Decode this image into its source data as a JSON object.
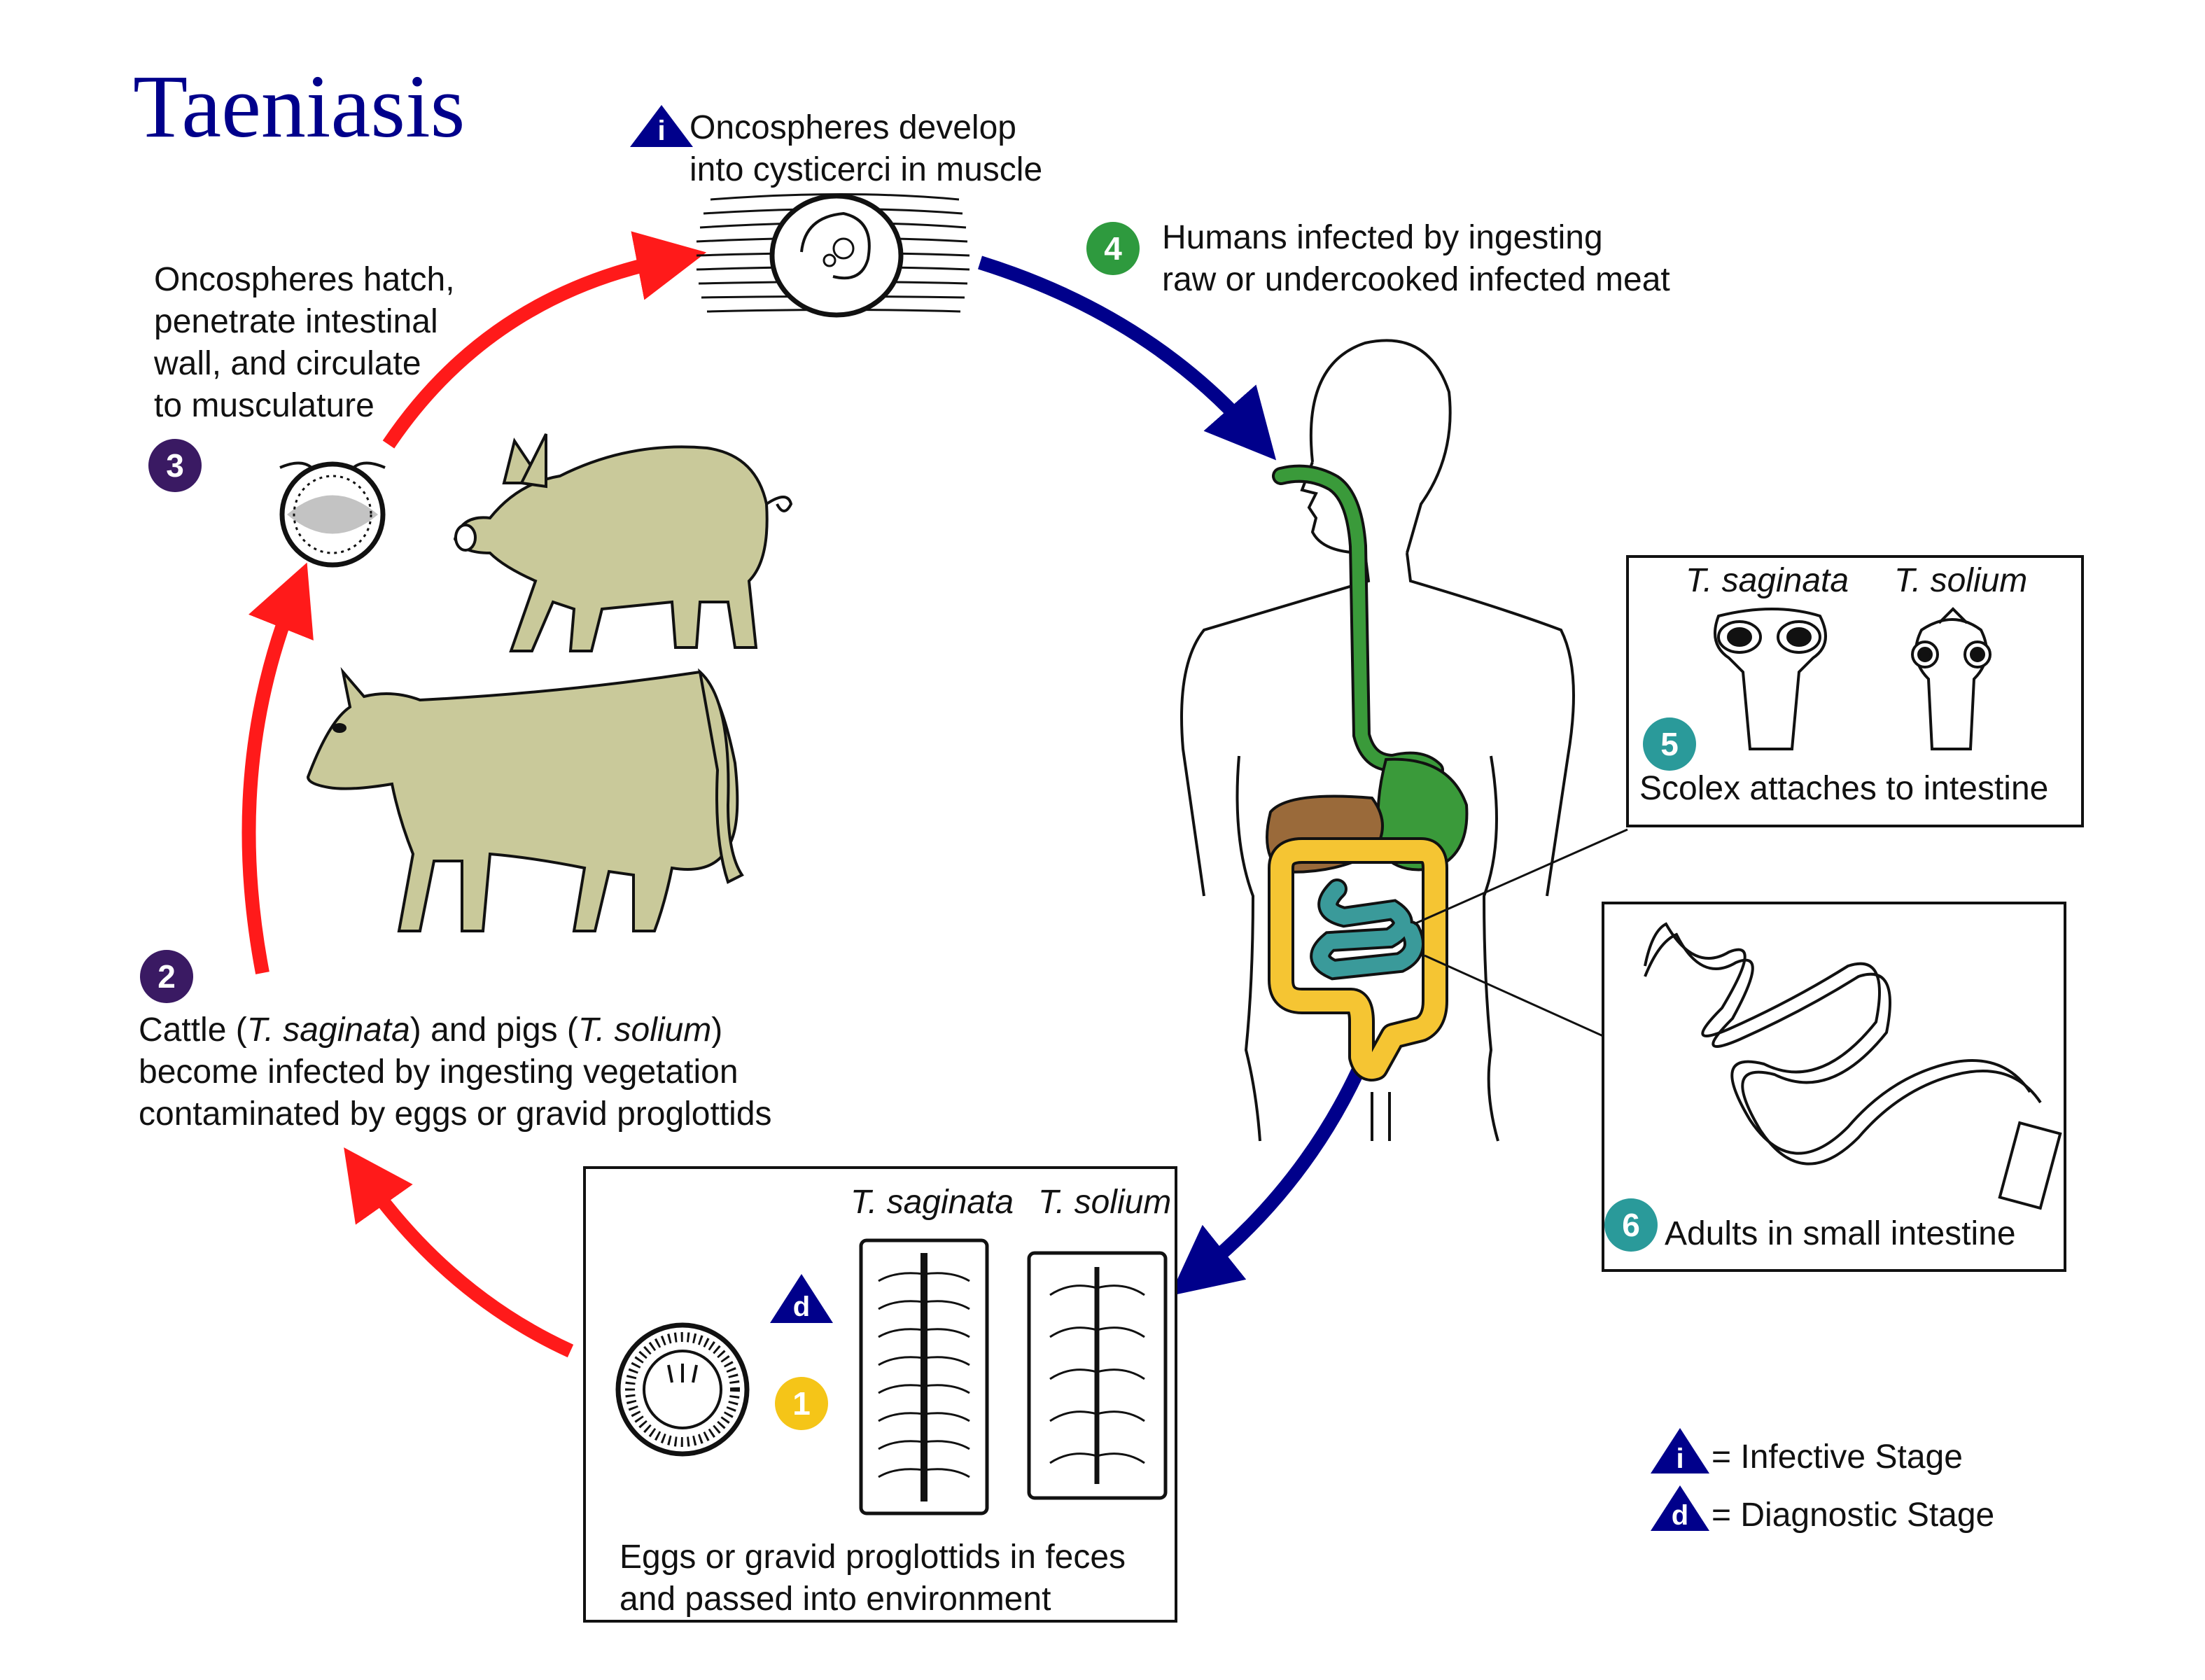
{
  "title": "Taeniasis",
  "steps": [
    {
      "number": "1",
      "color": "#f5c518",
      "lines": [
        "Eggs or gravid proglottids in feces",
        "and passed into environment"
      ]
    },
    {
      "number": "2",
      "color": "#3a1a63",
      "lines": [
        "Cattle (T. saginata) and pigs (T. solium)",
        "become infected by ingesting vegetation",
        "contaminated by eggs or gravid proglottids"
      ],
      "line1_parts": [
        "Cattle (",
        "T. saginata",
        ") and pigs (",
        "T. solium",
        ")"
      ]
    },
    {
      "number": "3",
      "color": "#3a1a63",
      "lines": [
        "Oncospheres hatch,",
        "penetrate intestinal",
        "wall, and circulate",
        "to musculature"
      ]
    },
    {
      "number": "4",
      "color": "#2e9a3e",
      "lines": [
        "Humans infected by ingesting",
        "raw or undercooked infected meat"
      ]
    },
    {
      "number": "5",
      "color": "#2a9a9a",
      "lines": [
        "Scolex attaches to intestine"
      ]
    },
    {
      "number": "6",
      "color": "#2a9a9a",
      "lines": [
        "Adults in small intestine"
      ]
    }
  ],
  "infective_note": {
    "letter": "i",
    "lines": [
      "Oncospheres develop",
      "into cysticerci in muscle"
    ]
  },
  "species": {
    "saginata": "T. saginata",
    "solium": "T. solium"
  },
  "legend": [
    {
      "letter": "i",
      "label": "= Infective Stage"
    },
    {
      "letter": "d",
      "label": "= Diagnostic Stage"
    }
  ],
  "colors": {
    "title": "#00008b",
    "arrow_red": "#ff1a1a",
    "arrow_blue": "#00008b",
    "animal": "#c9c99a",
    "esophagus": "#3a9a3a",
    "liver": "#9a6a3a",
    "colon": "#f5c533",
    "small_intestine": "#3a9a9a",
    "badge_triangle": "#00008b"
  },
  "icons": [
    "stage-triangle-icon",
    "step-badge-icon"
  ]
}
